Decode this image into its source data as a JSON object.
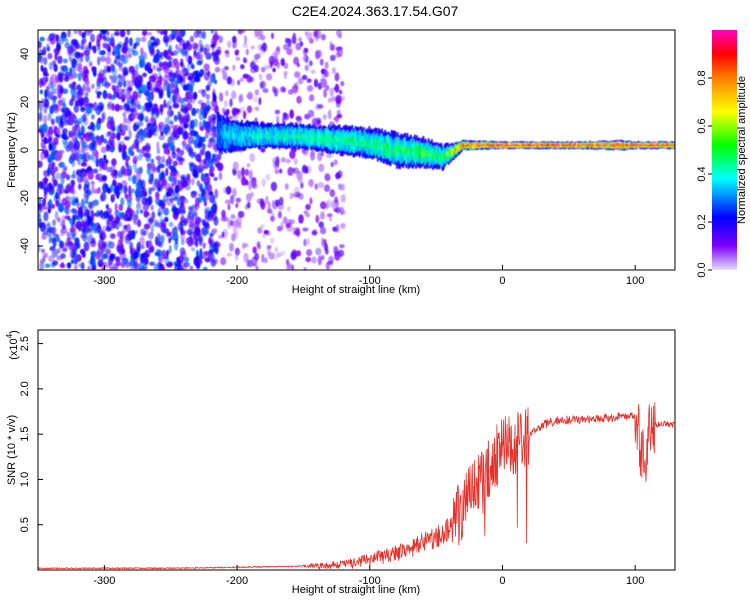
{
  "figure": {
    "title": "C2E4.2024.363.17.54.G07"
  },
  "colorbar": {
    "label": "Normalized spectral amplitude",
    "ticks": [
      "0.0",
      "0.2",
      "0.4",
      "0.6",
      "0.8"
    ],
    "colors": [
      "#e0e0ff",
      "#7f00ff",
      "#0000ff",
      "#00ffff",
      "#00ff00",
      "#ffff00",
      "#ff7f00",
      "#ff0000",
      "#ff00c0"
    ]
  },
  "chart_data": [
    {
      "type": "heatmap",
      "title": "",
      "xlabel": "Height of straight line (km)",
      "ylabel": "Frequency (Hz)",
      "xlim": [
        -350,
        130
      ],
      "ylim": [
        -50,
        50
      ],
      "xticks": [
        -300,
        -200,
        -100,
        0,
        100
      ],
      "yticks": [
        -40,
        -20,
        0,
        20,
        40
      ],
      "zlim": [
        0,
        1
      ],
      "regions": [
        {
          "x_range": [
            -350,
            -215
          ],
          "freq_range": [
            -50,
            50
          ],
          "pattern": "scattered noise",
          "amplitude": 0.15
        },
        {
          "x_range": [
            -215,
            -120
          ],
          "freq_range": [
            -50,
            50
          ],
          "pattern": "sparse noise",
          "amplitude": 0.08
        }
      ],
      "ridge": {
        "x": [
          -215,
          -200,
          -180,
          -160,
          -140,
          -120,
          -100,
          -80,
          -60,
          -45,
          -30,
          0,
          60,
          90,
          100,
          130
        ],
        "center_freq": [
          7,
          6,
          6,
          6,
          5,
          4,
          3,
          0,
          -1,
          -3,
          2,
          2,
          2,
          2,
          2,
          2
        ],
        "halfwidth": [
          8,
          6,
          5,
          5,
          5,
          6,
          6,
          7,
          6,
          5,
          2,
          1.5,
          1.5,
          2,
          1.5,
          1.5
        ],
        "peak_amplitude": [
          0.35,
          0.4,
          0.45,
          0.45,
          0.5,
          0.5,
          0.5,
          0.5,
          0.55,
          0.5,
          0.9,
          0.95,
          0.95,
          0.9,
          0.95,
          0.9
        ]
      }
    },
    {
      "type": "line",
      "title": "",
      "xlabel": "Height of straight line (km)",
      "ylabel": "SNR (10 * v/v)",
      "yscale_label": "(x10",
      "yscale_exponent": "4",
      "yscale_close": ")",
      "xlim": [
        -350,
        130
      ],
      "ylim": [
        0,
        2.65
      ],
      "xticks": [
        -300,
        -200,
        -100,
        0,
        100
      ],
      "yticks": [
        "0.5",
        "1.0",
        "1.5",
        "2.0",
        "2.5"
      ],
      "color": "#e8302a",
      "series": [
        {
          "x": [
            -350,
            -300,
            -250,
            -200,
            -160,
            -130,
            -110,
            -100,
            -90,
            -80,
            -70,
            -60,
            -50,
            -40,
            -35,
            -30,
            -25,
            -20,
            -15,
            -10,
            -5,
            0,
            10,
            20,
            30,
            40,
            60,
            80,
            100,
            105,
            108,
            110,
            115,
            120,
            130
          ],
          "y": [
            0.02,
            0.02,
            0.02,
            0.03,
            0.04,
            0.05,
            0.08,
            0.12,
            0.15,
            0.18,
            0.22,
            0.3,
            0.35,
            0.45,
            0.55,
            0.7,
            0.9,
            1.05,
            0.95,
            1.15,
            1.25,
            1.35,
            1.4,
            1.5,
            1.6,
            1.65,
            1.67,
            1.68,
            1.7,
            1.3,
            1.1,
            1.65,
            1.6,
            1.62,
            1.6
          ]
        }
      ]
    }
  ]
}
